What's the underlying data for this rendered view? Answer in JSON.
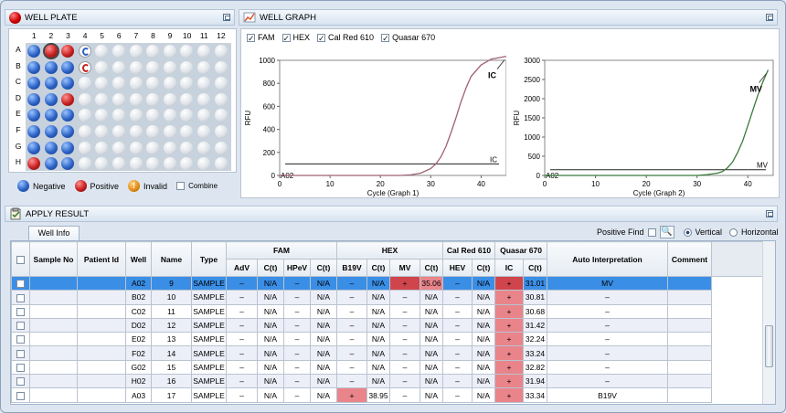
{
  "well_plate": {
    "title": "WELL PLATE",
    "cols": [
      "1",
      "2",
      "3",
      "4",
      "5",
      "6",
      "7",
      "8",
      "9",
      "10",
      "11",
      "12"
    ],
    "rows": [
      "A",
      "B",
      "C",
      "D",
      "E",
      "F",
      "G",
      "H"
    ],
    "wells": {
      "A": "nPpC",
      "B": "nnnX",
      "C": "nnn",
      "D": "nnp",
      "E": "nnn",
      "F": "nnn",
      "G": "nnn",
      "H": "pnn"
    },
    "legend": {
      "negative": "Negative",
      "positive": "Positive",
      "invalid": "Invalid",
      "invalid_glyph": "!",
      "combine": "Combine"
    }
  },
  "well_graph": {
    "title": "WELL GRAPH",
    "channels": [
      {
        "label": "FAM",
        "checked": true
      },
      {
        "label": "HEX",
        "checked": true
      },
      {
        "label": "Cal Red 610",
        "checked": true
      },
      {
        "label": "Quasar 670",
        "checked": true
      }
    ]
  },
  "chart_data": [
    {
      "type": "line",
      "xlabel": "Cycle (Graph 1)",
      "ylabel": "RFU",
      "xlim": [
        0,
        45
      ],
      "ylim": [
        0,
        1000
      ],
      "xticks": [
        0,
        10,
        20,
        30,
        40
      ],
      "yticks": [
        0,
        200,
        400,
        600,
        800,
        1000
      ],
      "threshold": {
        "label": "IC",
        "y": 100
      },
      "start_label": "A02",
      "curve_label": "IC",
      "curve_color": "#a06070",
      "series": [
        {
          "name": "IC",
          "x": [
            0,
            24,
            26,
            28,
            30,
            31,
            32,
            33,
            34,
            35,
            36,
            37,
            38,
            40,
            42,
            45
          ],
          "y": [
            0,
            0,
            5,
            20,
            60,
            100,
            160,
            250,
            370,
            500,
            640,
            760,
            860,
            960,
            1010,
            1035
          ]
        }
      ]
    },
    {
      "type": "line",
      "xlabel": "Cycle (Graph 2)",
      "ylabel": "RFU",
      "xlim": [
        0,
        45
      ],
      "ylim": [
        0,
        3000
      ],
      "xticks": [
        0,
        10,
        20,
        30,
        40
      ],
      "yticks": [
        0,
        500,
        1000,
        1500,
        2000,
        2500,
        3000
      ],
      "threshold": {
        "label": "MV",
        "y": 150
      },
      "start_label": "A02",
      "curve_label": "MV",
      "curve_color": "#3a7a3a",
      "series": [
        {
          "name": "MV",
          "x": [
            0,
            30,
            32,
            34,
            35,
            36,
            37,
            38,
            39,
            40,
            41,
            42,
            43,
            44
          ],
          "y": [
            0,
            0,
            20,
            60,
            100,
            200,
            350,
            600,
            900,
            1300,
            1700,
            2100,
            2450,
            2750
          ]
        }
      ]
    }
  ],
  "apply_result": {
    "title": "APPLY RESULT",
    "tab": "Well Info",
    "positive_find": "Positive Find",
    "vertical": "Vertical",
    "horizontal": "Horizontal",
    "groups": {
      "fam": "FAM",
      "hex": "HEX",
      "calred": "Cal Red 610",
      "quasar": "Quasar 670"
    },
    "headers": [
      "Sample No",
      "Patient Id",
      "Well",
      "Name",
      "Type",
      "AdV",
      "C(t)",
      "HPeV",
      "C(t)",
      "B19V",
      "C(t)",
      "MV",
      "C(t)",
      "HEV",
      "C(t)",
      "IC",
      "C(t)",
      "Auto  Interpretation",
      "Comment"
    ],
    "rows": [
      [
        "",
        "",
        "A02",
        "9",
        "SAMPLE",
        "–",
        "N/A",
        "–",
        "N/A",
        "–",
        "N/A",
        "+",
        "35.06",
        "–",
        "N/A",
        "+",
        "31.01",
        "MV",
        ""
      ],
      [
        "",
        "",
        "B02",
        "10",
        "SAMPLE",
        "–",
        "N/A",
        "–",
        "N/A",
        "–",
        "N/A",
        "–",
        "N/A",
        "–",
        "N/A",
        "+",
        "30.81",
        "–",
        ""
      ],
      [
        "",
        "",
        "C02",
        "11",
        "SAMPLE",
        "–",
        "N/A",
        "–",
        "N/A",
        "–",
        "N/A",
        "–",
        "N/A",
        "–",
        "N/A",
        "+",
        "30.68",
        "–",
        ""
      ],
      [
        "",
        "",
        "D02",
        "12",
        "SAMPLE",
        "–",
        "N/A",
        "–",
        "N/A",
        "–",
        "N/A",
        "–",
        "N/A",
        "–",
        "N/A",
        "+",
        "31.42",
        "–",
        ""
      ],
      [
        "",
        "",
        "E02",
        "13",
        "SAMPLE",
        "–",
        "N/A",
        "–",
        "N/A",
        "–",
        "N/A",
        "–",
        "N/A",
        "–",
        "N/A",
        "+",
        "32.24",
        "–",
        ""
      ],
      [
        "",
        "",
        "F02",
        "14",
        "SAMPLE",
        "–",
        "N/A",
        "–",
        "N/A",
        "–",
        "N/A",
        "–",
        "N/A",
        "–",
        "N/A",
        "+",
        "33.24",
        "–",
        ""
      ],
      [
        "",
        "",
        "G02",
        "15",
        "SAMPLE",
        "–",
        "N/A",
        "–",
        "N/A",
        "–",
        "N/A",
        "–",
        "N/A",
        "–",
        "N/A",
        "+",
        "32.82",
        "–",
        ""
      ],
      [
        "",
        "",
        "H02",
        "16",
        "SAMPLE",
        "–",
        "N/A",
        "–",
        "N/A",
        "–",
        "N/A",
        "–",
        "N/A",
        "–",
        "N/A",
        "+",
        "31.94",
        "–",
        ""
      ],
      [
        "",
        "",
        "A03",
        "17",
        "SAMPLE",
        "–",
        "N/A",
        "–",
        "N/A",
        "+",
        "38.95",
        "–",
        "N/A",
        "–",
        "N/A",
        "+",
        "33.34",
        "B19V",
        ""
      ]
    ]
  }
}
